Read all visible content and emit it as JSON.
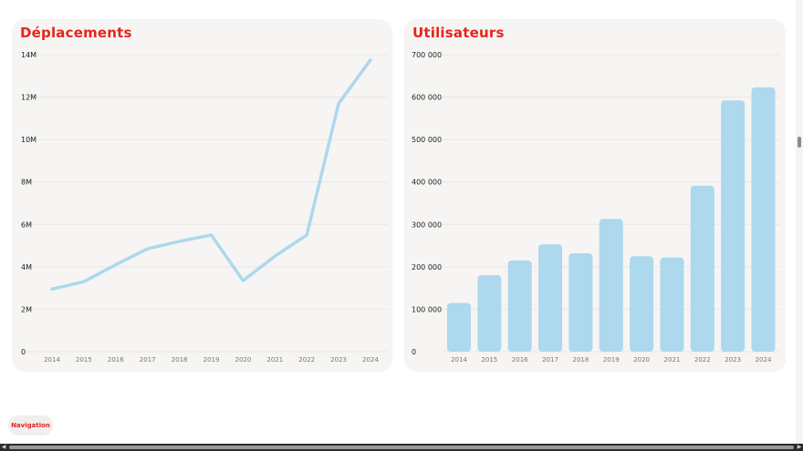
{
  "colors": {
    "accent": "#e3261e",
    "series": "#add8ed",
    "card_bg": "#f6f5f3"
  },
  "chart_data": [
    {
      "type": "line",
      "title": "Déplacements",
      "xlabel": "",
      "ylabel": "",
      "x": [
        "2014",
        "2015",
        "2016",
        "2017",
        "2018",
        "2019",
        "2020",
        "2021",
        "2022",
        "2023",
        "2024"
      ],
      "y_ticks": [
        "0",
        "2M",
        "4M",
        "6M",
        "8M",
        "10M",
        "12M",
        "14M"
      ],
      "ylim": [
        0,
        14000000
      ],
      "grid": true,
      "series": [
        {
          "values": [
            2950000,
            3300000,
            4100000,
            4850000,
            5200000,
            5500000,
            3350000,
            4500000,
            5500000,
            11700000,
            13750000
          ]
        }
      ]
    },
    {
      "type": "bar",
      "title": "Utilisateurs",
      "xlabel": "",
      "ylabel": "",
      "categories": [
        "2014",
        "2015",
        "2016",
        "2017",
        "2018",
        "2019",
        "2020",
        "2021",
        "2022",
        "2023",
        "2024"
      ],
      "y_ticks": [
        "0",
        "100 000",
        "200 000",
        "300 000",
        "400 000",
        "500 000",
        "600 000",
        "700 000"
      ],
      "ylim": [
        0,
        700000
      ],
      "grid": true,
      "values": [
        115000,
        180000,
        215000,
        253000,
        232000,
        313000,
        225000,
        222000,
        391000,
        592000,
        623000
      ]
    }
  ],
  "navigation": {
    "label": "Navigation"
  },
  "scrollbar": {
    "left_arrow": "◀",
    "right_arrow": "▶"
  }
}
